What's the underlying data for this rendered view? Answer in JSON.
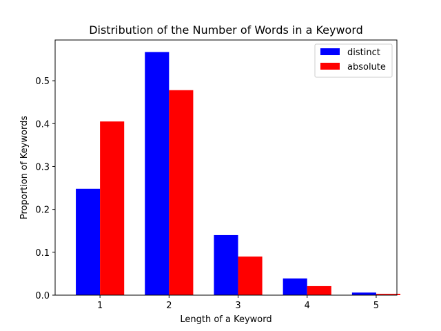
{
  "chart_data": {
    "type": "bar",
    "title": "Distribution of the Number of Words in a Keyword",
    "xlabel": "Length of a Keyword",
    "ylabel": "Proportion of Keywords",
    "categories": [
      "1",
      "2",
      "3",
      "4",
      "5"
    ],
    "series": [
      {
        "name": "distinct",
        "color": "#0000ff",
        "values": [
          0.248,
          0.567,
          0.14,
          0.039,
          0.006
        ]
      },
      {
        "name": "absolute",
        "color": "#ff0000",
        "values": [
          0.405,
          0.478,
          0.09,
          0.021,
          0.003
        ]
      }
    ],
    "yticks": [
      "0.0",
      "0.1",
      "0.2",
      "0.3",
      "0.4",
      "0.5"
    ],
    "ylim": [
      0,
      0.595
    ],
    "grid": false,
    "legend_position": "top-right"
  }
}
